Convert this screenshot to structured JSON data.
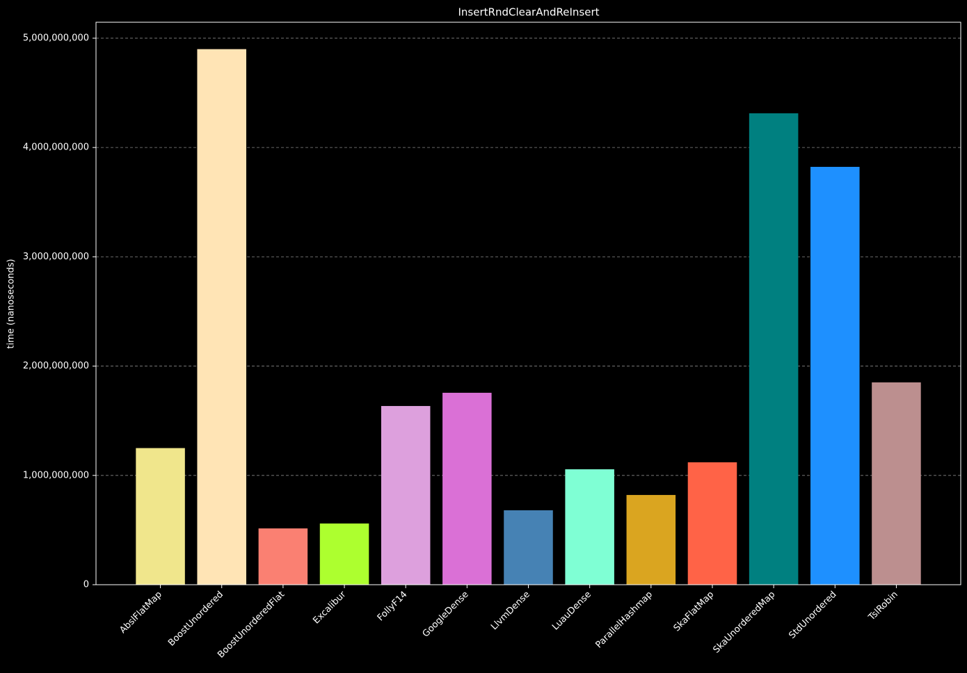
{
  "chart_data": {
    "type": "bar",
    "title": "InsertRndClearAndReInsert",
    "y_label": "time (nanoseconds)",
    "categories": [
      "AbslFlatMap",
      "BoostUnordered",
      "BoostUnorderedFlat",
      "Excalibur",
      "FollyF14",
      "GoogleDense",
      "LlvmDense",
      "LuauDense",
      "ParallelHashmap",
      "SkaFlatMap",
      "SkaUnorderedMap",
      "StdUnordered",
      "TslRobin"
    ],
    "values": [
      1250000000,
      4900000000,
      515000000,
      560000000,
      1635000000,
      1756000000,
      681000000,
      1056000000,
      821000000,
      1120000000,
      4313000000,
      3823000000,
      1851000000
    ],
    "colors": [
      "#f0e68c",
      "#ffe4b5",
      "#fa8072",
      "#adff2f",
      "#dda0dd",
      "#da70d6",
      "#4682b4",
      "#7fffd4",
      "#daa520",
      "#ff6347",
      "#008080",
      "#1e90ff",
      "#bc8f8f"
    ],
    "ylim": [
      0,
      5146000000
    ],
    "yticks": [
      0,
      {
        "value": 1000000000,
        "label": "1,000,000,000"
      },
      {
        "value": 2000000000,
        "label": "2,000,000,000"
      },
      {
        "value": 3000000000,
        "label": "3,000,000,000"
      },
      {
        "value": 4000000000,
        "label": "4,000,000,000"
      },
      {
        "value": 5000000000,
        "label": "5,000,000,000"
      }
    ],
    "grid": true
  }
}
